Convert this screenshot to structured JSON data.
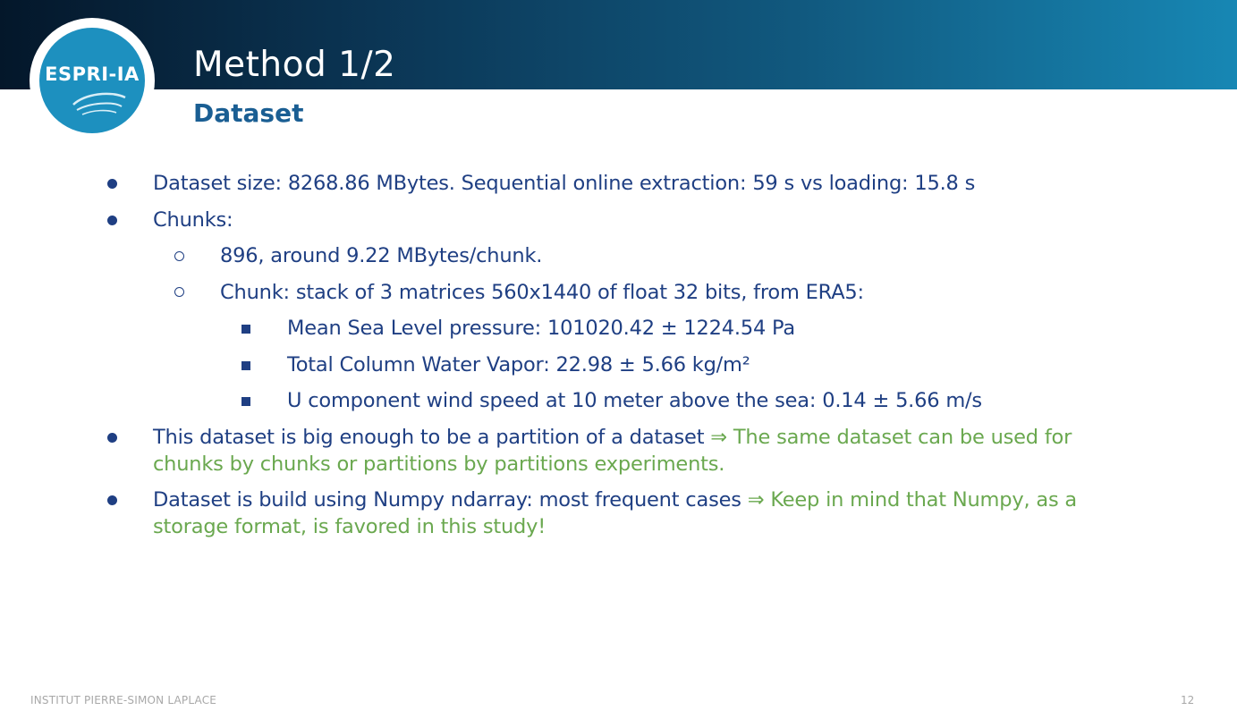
{
  "header": {
    "title": "Method 1/2",
    "subtitle": "Dataset",
    "logo_text": "ESPRI-IA"
  },
  "bullets": {
    "b1": "Dataset size: 8268.86 MBytes. Sequential online extraction: 59 s vs loading:  15.8 s",
    "b2": "Chunks:",
    "b2_1": "896, around 9.22 MBytes/chunk.",
    "b2_2": "Chunk: stack of 3 matrices 560x1440 of float 32 bits, from ERA5:",
    "b2_2_1": "Mean Sea Level pressure: 101020.42 ± 1224.54 Pa",
    "b2_2_2": "Total Column Water Vapor: 22.98 ± 5.66 kg/m²",
    "b2_2_3": "U component wind speed at 10 meter above the sea: 0.14 ± 5.66 m/s",
    "b3_main": "This dataset is big enough to be a partition of a dataset ",
    "b3_highlight_line1": "⇒ The same dataset can be used for",
    "b3_highlight_line2": "chunks by chunks or partitions by partitions experiments.",
    "b4_main": "Dataset is build using Numpy ndarray: most frequent cases ",
    "b4_highlight_line1": "⇒ Keep in mind that Numpy, as a",
    "b4_highlight_line2": "storage format, is favored in this study!"
  },
  "footer": {
    "institution": "INSTITUT PIERRE-SIMON LAPLACE",
    "page_number": "12"
  },
  "colors": {
    "text_blue": "#1f3f83",
    "highlight_green": "#6aa84f",
    "subtitle_blue": "#1a5e93",
    "logo_blue": "#1d90bf"
  }
}
